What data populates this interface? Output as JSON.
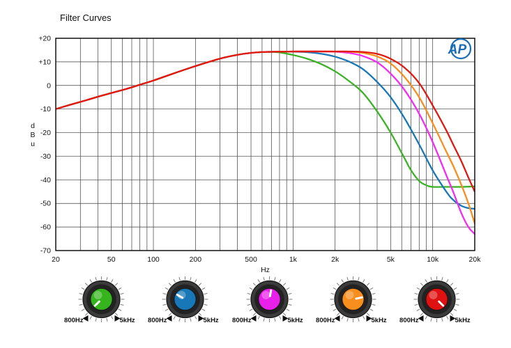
{
  "logo": {
    "text": "AP",
    "color": "#1b6db5"
  },
  "chart_data": {
    "type": "line",
    "title": "Filter Curves",
    "xlabel": "Hz",
    "ylabel": "dBu",
    "x_scale": "log",
    "xlim": [
      20,
      20000
    ],
    "ylim": [
      -70,
      20
    ],
    "grid": true,
    "legend": "none",
    "x_ticks": [
      {
        "v": 20,
        "label": "20"
      },
      {
        "v": 50,
        "label": "50"
      },
      {
        "v": 100,
        "label": "100"
      },
      {
        "v": 200,
        "label": "200"
      },
      {
        "v": 500,
        "label": "500"
      },
      {
        "v": 1000,
        "label": "1k"
      },
      {
        "v": 2000,
        "label": "2k"
      },
      {
        "v": 5000,
        "label": "5k"
      },
      {
        "v": 10000,
        "label": "10k"
      },
      {
        "v": 20000,
        "label": "20k"
      }
    ],
    "y_ticks": [
      {
        "v": 20,
        "label": "+20"
      },
      {
        "v": 10,
        "label": "+10"
      },
      {
        "v": 0,
        "label": "0"
      },
      {
        "v": -10,
        "label": "-10"
      },
      {
        "v": -20,
        "label": "-20"
      },
      {
        "v": -30,
        "label": "-30"
      },
      {
        "v": -40,
        "label": "-40"
      },
      {
        "v": -50,
        "label": "-50"
      },
      {
        "v": -60,
        "label": "-60"
      },
      {
        "v": -70,
        "label": "-70"
      }
    ],
    "series": [
      {
        "name": "green-filter",
        "color": "#3cb227",
        "points": [
          [
            20,
            -10
          ],
          [
            25,
            -8.3
          ],
          [
            32,
            -6.5
          ],
          [
            40,
            -4.8
          ],
          [
            50,
            -3.2
          ],
          [
            63,
            -1.6
          ],
          [
            80,
            0.3
          ],
          [
            100,
            2.1
          ],
          [
            125,
            4.1
          ],
          [
            160,
            6.3
          ],
          [
            200,
            8.2
          ],
          [
            250,
            10
          ],
          [
            315,
            11.7
          ],
          [
            400,
            13
          ],
          [
            500,
            13.8
          ],
          [
            630,
            14.2
          ],
          [
            800,
            14
          ],
          [
            1000,
            12.9
          ],
          [
            1250,
            11.4
          ],
          [
            1600,
            9
          ],
          [
            2000,
            6
          ],
          [
            2500,
            2
          ],
          [
            3150,
            -3
          ],
          [
            4000,
            -11
          ],
          [
            5000,
            -20
          ],
          [
            6300,
            -31
          ],
          [
            7000,
            -36
          ],
          [
            8000,
            -40.5
          ],
          [
            9000,
            -42.3
          ],
          [
            10000,
            -43
          ],
          [
            12500,
            -43
          ],
          [
            16000,
            -43
          ],
          [
            20000,
            -42.8
          ]
        ]
      },
      {
        "name": "blue-filter",
        "color": "#1877b6",
        "points": [
          [
            20,
            -10
          ],
          [
            25,
            -8.3
          ],
          [
            32,
            -6.5
          ],
          [
            40,
            -4.8
          ],
          [
            50,
            -3.2
          ],
          [
            63,
            -1.6
          ],
          [
            80,
            0.3
          ],
          [
            100,
            2.1
          ],
          [
            125,
            4.1
          ],
          [
            160,
            6.3
          ],
          [
            200,
            8.2
          ],
          [
            250,
            10
          ],
          [
            315,
            11.7
          ],
          [
            400,
            13
          ],
          [
            500,
            13.8
          ],
          [
            630,
            14.2
          ],
          [
            800,
            14.3
          ],
          [
            1000,
            14.3
          ],
          [
            1250,
            14.1
          ],
          [
            1600,
            13.4
          ],
          [
            2000,
            12.2
          ],
          [
            2500,
            10.2
          ],
          [
            3150,
            7
          ],
          [
            4000,
            1.5
          ],
          [
            5000,
            -5
          ],
          [
            6300,
            -14
          ],
          [
            8000,
            -25
          ],
          [
            10000,
            -36
          ],
          [
            12500,
            -45
          ],
          [
            14000,
            -48.5
          ],
          [
            16000,
            -51
          ],
          [
            18000,
            -52
          ],
          [
            20000,
            -52.3
          ]
        ]
      },
      {
        "name": "magenta-filter",
        "color": "#f32bf3",
        "points": [
          [
            20,
            -10
          ],
          [
            25,
            -8.3
          ],
          [
            32,
            -6.5
          ],
          [
            40,
            -4.8
          ],
          [
            50,
            -3.2
          ],
          [
            63,
            -1.6
          ],
          [
            80,
            0.3
          ],
          [
            100,
            2.1
          ],
          [
            125,
            4.1
          ],
          [
            160,
            6.3
          ],
          [
            200,
            8.2
          ],
          [
            250,
            10
          ],
          [
            315,
            11.7
          ],
          [
            400,
            13
          ],
          [
            500,
            13.8
          ],
          [
            630,
            14.2
          ],
          [
            800,
            14.3
          ],
          [
            1000,
            14.4
          ],
          [
            1250,
            14.4
          ],
          [
            1600,
            14.4
          ],
          [
            2000,
            14.3
          ],
          [
            2500,
            13.8
          ],
          [
            3150,
            12.5
          ],
          [
            4000,
            9.8
          ],
          [
            5000,
            5
          ],
          [
            6300,
            -2
          ],
          [
            8000,
            -12
          ],
          [
            10000,
            -24
          ],
          [
            12500,
            -38
          ],
          [
            14000,
            -45
          ],
          [
            16000,
            -54
          ],
          [
            18000,
            -60
          ],
          [
            20000,
            -63
          ]
        ]
      },
      {
        "name": "orange-filter",
        "color": "#f78e1e",
        "points": [
          [
            20,
            -10
          ],
          [
            25,
            -8.3
          ],
          [
            32,
            -6.5
          ],
          [
            40,
            -4.8
          ],
          [
            50,
            -3.2
          ],
          [
            63,
            -1.6
          ],
          [
            80,
            0.3
          ],
          [
            100,
            2.1
          ],
          [
            125,
            4.1
          ],
          [
            160,
            6.3
          ],
          [
            200,
            8.2
          ],
          [
            250,
            10
          ],
          [
            315,
            11.7
          ],
          [
            400,
            13
          ],
          [
            500,
            13.8
          ],
          [
            630,
            14.2
          ],
          [
            800,
            14.3
          ],
          [
            1000,
            14.4
          ],
          [
            1600,
            14.4
          ],
          [
            2000,
            14.4
          ],
          [
            2500,
            14.3
          ],
          [
            3150,
            13.8
          ],
          [
            4000,
            12.3
          ],
          [
            5000,
            9.3
          ],
          [
            6300,
            3.5
          ],
          [
            8000,
            -5
          ],
          [
            10000,
            -16
          ],
          [
            12500,
            -28
          ],
          [
            14000,
            -34
          ],
          [
            16000,
            -42
          ],
          [
            18000,
            -50
          ],
          [
            20000,
            -58.5
          ]
        ]
      },
      {
        "name": "red-filter",
        "color": "#df1a10",
        "points": [
          [
            20,
            -10
          ],
          [
            25,
            -8.3
          ],
          [
            32,
            -6.5
          ],
          [
            40,
            -4.8
          ],
          [
            50,
            -3.2
          ],
          [
            63,
            -1.6
          ],
          [
            80,
            0.3
          ],
          [
            100,
            2.1
          ],
          [
            125,
            4.1
          ],
          [
            160,
            6.3
          ],
          [
            200,
            8.2
          ],
          [
            250,
            10
          ],
          [
            315,
            11.7
          ],
          [
            400,
            13
          ],
          [
            500,
            13.8
          ],
          [
            630,
            14.2
          ],
          [
            800,
            14.3
          ],
          [
            1000,
            14.4
          ],
          [
            2000,
            14.4
          ],
          [
            2500,
            14.4
          ],
          [
            3150,
            14.2
          ],
          [
            4000,
            13.4
          ],
          [
            5000,
            11.3
          ],
          [
            6300,
            7.5
          ],
          [
            8000,
            1
          ],
          [
            10000,
            -8.5
          ],
          [
            12500,
            -19
          ],
          [
            14000,
            -25
          ],
          [
            16000,
            -32
          ],
          [
            18000,
            -39
          ],
          [
            20000,
            -45
          ]
        ]
      }
    ]
  },
  "knobs": {
    "items": [
      {
        "id": "knob-green",
        "color": "#36b41e",
        "pointer_angle": -135,
        "label_left": "800Hz",
        "label_right": "5kHz"
      },
      {
        "id": "knob-blue",
        "color": "#1877b6",
        "pointer_angle": -60,
        "label_left": "800Hz",
        "label_right": "5kHz"
      },
      {
        "id": "knob-magenta",
        "color": "#e920e9",
        "pointer_angle": 10,
        "label_left": "800Hz",
        "label_right": "5kHz"
      },
      {
        "id": "knob-orange",
        "color": "#f78e1e",
        "pointer_angle": 78,
        "label_left": "800Hz",
        "label_right": "5kHz"
      },
      {
        "id": "knob-red",
        "color": "#e01111",
        "pointer_angle": 135,
        "label_left": "800Hz",
        "label_right": "5kHz"
      }
    ]
  }
}
